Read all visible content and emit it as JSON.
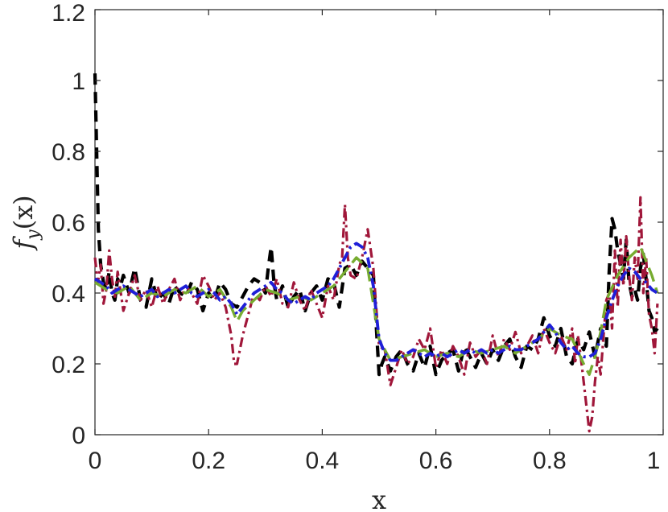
{
  "chart_data": {
    "type": "line",
    "title": "",
    "xlabel": "x",
    "ylabel_parts": {
      "f": "f",
      "sub": "y",
      "args": "(x)"
    },
    "xlim": [
      0,
      1
    ],
    "ylim": [
      0,
      1.2
    ],
    "xticks": [
      0,
      0.2,
      0.4,
      0.6,
      0.8,
      1
    ],
    "xtick_labels": [
      "0",
      "0.2",
      "0.4",
      "0.6",
      "0.8",
      "1"
    ],
    "yticks": [
      0,
      0.2,
      0.4,
      0.6,
      0.8,
      1,
      1.2
    ],
    "ytick_labels": [
      "0",
      "0.2",
      "0.4",
      "0.6",
      "0.8",
      "1",
      "1.2"
    ],
    "grid": false,
    "legend": "none",
    "series": [
      {
        "color": "#000000",
        "style": "dashed-thick",
        "x": [
          0.0,
          0.003,
          0.006,
          0.01,
          0.015,
          0.02,
          0.025,
          0.03,
          0.035,
          0.04,
          0.045,
          0.05,
          0.06,
          0.07,
          0.08,
          0.09,
          0.1,
          0.11,
          0.12,
          0.13,
          0.14,
          0.15,
          0.16,
          0.17,
          0.18,
          0.19,
          0.2,
          0.21,
          0.22,
          0.23,
          0.24,
          0.25,
          0.26,
          0.27,
          0.28,
          0.29,
          0.3,
          0.305,
          0.31,
          0.315,
          0.32,
          0.33,
          0.34,
          0.35,
          0.36,
          0.37,
          0.38,
          0.39,
          0.4,
          0.41,
          0.42,
          0.43,
          0.44,
          0.45,
          0.46,
          0.47,
          0.48,
          0.49,
          0.5,
          0.505,
          0.51,
          0.52,
          0.53,
          0.54,
          0.55,
          0.56,
          0.57,
          0.58,
          0.59,
          0.6,
          0.61,
          0.62,
          0.63,
          0.64,
          0.65,
          0.66,
          0.67,
          0.68,
          0.69,
          0.7,
          0.71,
          0.72,
          0.73,
          0.74,
          0.75,
          0.76,
          0.77,
          0.78,
          0.79,
          0.8,
          0.81,
          0.82,
          0.83,
          0.84,
          0.85,
          0.86,
          0.87,
          0.88,
          0.89,
          0.9,
          0.905,
          0.91,
          0.915,
          0.92,
          0.925,
          0.93,
          0.935,
          0.94,
          0.945,
          0.95,
          0.955,
          0.96,
          0.965,
          0.97,
          0.975,
          0.98,
          0.985,
          0.99
        ],
        "y": [
          1.02,
          0.8,
          0.58,
          0.48,
          0.43,
          0.41,
          0.46,
          0.4,
          0.38,
          0.44,
          0.42,
          0.45,
          0.4,
          0.47,
          0.38,
          0.36,
          0.44,
          0.38,
          0.4,
          0.37,
          0.42,
          0.4,
          0.39,
          0.43,
          0.41,
          0.35,
          0.4,
          0.38,
          0.43,
          0.41,
          0.37,
          0.36,
          0.39,
          0.42,
          0.44,
          0.43,
          0.4,
          0.47,
          0.53,
          0.43,
          0.38,
          0.42,
          0.36,
          0.39,
          0.41,
          0.35,
          0.4,
          0.42,
          0.38,
          0.44,
          0.43,
          0.36,
          0.47,
          0.48,
          0.45,
          0.49,
          0.47,
          0.45,
          0.17,
          0.2,
          0.22,
          0.18,
          0.22,
          0.24,
          0.2,
          0.18,
          0.23,
          0.19,
          0.25,
          0.17,
          0.21,
          0.23,
          0.24,
          0.18,
          0.25,
          0.22,
          0.19,
          0.23,
          0.2,
          0.24,
          0.21,
          0.25,
          0.27,
          0.22,
          0.19,
          0.25,
          0.24,
          0.27,
          0.33,
          0.28,
          0.25,
          0.3,
          0.22,
          0.2,
          0.27,
          0.24,
          0.29,
          0.22,
          0.3,
          0.25,
          0.46,
          0.61,
          0.58,
          0.52,
          0.48,
          0.44,
          0.55,
          0.43,
          0.39,
          0.41,
          0.38,
          0.47,
          0.51,
          0.44,
          0.35,
          0.33,
          0.29,
          0.3
        ]
      },
      {
        "color": "#a0173a",
        "style": "dashdot",
        "x": [
          0.0,
          0.005,
          0.01,
          0.015,
          0.02,
          0.025,
          0.03,
          0.035,
          0.04,
          0.05,
          0.06,
          0.07,
          0.08,
          0.09,
          0.1,
          0.11,
          0.12,
          0.13,
          0.14,
          0.15,
          0.16,
          0.17,
          0.18,
          0.19,
          0.2,
          0.21,
          0.22,
          0.23,
          0.24,
          0.245,
          0.25,
          0.26,
          0.27,
          0.28,
          0.29,
          0.3,
          0.31,
          0.32,
          0.33,
          0.34,
          0.35,
          0.36,
          0.37,
          0.38,
          0.39,
          0.4,
          0.41,
          0.42,
          0.43,
          0.435,
          0.44,
          0.445,
          0.45,
          0.46,
          0.47,
          0.48,
          0.49,
          0.5,
          0.51,
          0.52,
          0.53,
          0.54,
          0.55,
          0.56,
          0.57,
          0.58,
          0.59,
          0.6,
          0.61,
          0.62,
          0.63,
          0.64,
          0.65,
          0.66,
          0.67,
          0.68,
          0.69,
          0.7,
          0.71,
          0.72,
          0.73,
          0.74,
          0.75,
          0.76,
          0.77,
          0.78,
          0.79,
          0.8,
          0.81,
          0.82,
          0.83,
          0.84,
          0.845,
          0.85,
          0.855,
          0.86,
          0.865,
          0.87,
          0.875,
          0.88,
          0.885,
          0.89,
          0.895,
          0.9,
          0.905,
          0.91,
          0.915,
          0.92,
          0.925,
          0.93,
          0.935,
          0.94,
          0.945,
          0.95,
          0.955,
          0.96,
          0.965,
          0.97,
          0.975,
          0.98,
          0.985,
          0.99
        ],
        "y": [
          0.5,
          0.43,
          0.48,
          0.37,
          0.41,
          0.52,
          0.44,
          0.39,
          0.46,
          0.35,
          0.4,
          0.45,
          0.38,
          0.41,
          0.36,
          0.42,
          0.37,
          0.41,
          0.44,
          0.38,
          0.42,
          0.4,
          0.37,
          0.45,
          0.42,
          0.38,
          0.4,
          0.36,
          0.28,
          0.2,
          0.2,
          0.28,
          0.34,
          0.4,
          0.38,
          0.42,
          0.39,
          0.44,
          0.37,
          0.36,
          0.43,
          0.38,
          0.35,
          0.41,
          0.37,
          0.33,
          0.42,
          0.38,
          0.48,
          0.5,
          0.65,
          0.5,
          0.45,
          0.44,
          0.5,
          0.58,
          0.47,
          0.25,
          0.24,
          0.14,
          0.19,
          0.24,
          0.2,
          0.22,
          0.27,
          0.24,
          0.3,
          0.19,
          0.24,
          0.2,
          0.25,
          0.22,
          0.17,
          0.26,
          0.22,
          0.24,
          0.2,
          0.28,
          0.22,
          0.27,
          0.24,
          0.29,
          0.23,
          0.25,
          0.28,
          0.23,
          0.3,
          0.26,
          0.23,
          0.28,
          0.24,
          0.3,
          0.2,
          0.28,
          0.22,
          0.15,
          0.08,
          0.01,
          0.05,
          0.15,
          0.22,
          0.17,
          0.28,
          0.38,
          0.4,
          0.3,
          0.52,
          0.36,
          0.55,
          0.42,
          0.56,
          0.45,
          0.38,
          0.5,
          0.44,
          0.67,
          0.4,
          0.5,
          0.34,
          0.3,
          0.23,
          0.37
        ]
      },
      {
        "color": "#77ac30",
        "style": "dashed-long",
        "x": [
          0.0,
          0.02,
          0.04,
          0.06,
          0.08,
          0.1,
          0.12,
          0.14,
          0.16,
          0.18,
          0.2,
          0.22,
          0.24,
          0.25,
          0.26,
          0.28,
          0.3,
          0.32,
          0.34,
          0.36,
          0.38,
          0.4,
          0.42,
          0.44,
          0.46,
          0.48,
          0.5,
          0.52,
          0.54,
          0.56,
          0.58,
          0.6,
          0.62,
          0.64,
          0.66,
          0.68,
          0.7,
          0.72,
          0.74,
          0.76,
          0.78,
          0.8,
          0.82,
          0.84,
          0.86,
          0.87,
          0.88,
          0.89,
          0.9,
          0.92,
          0.94,
          0.96,
          0.98,
          0.99
        ],
        "y": [
          0.43,
          0.41,
          0.4,
          0.42,
          0.38,
          0.4,
          0.39,
          0.41,
          0.4,
          0.42,
          0.39,
          0.41,
          0.36,
          0.32,
          0.35,
          0.38,
          0.41,
          0.4,
          0.38,
          0.39,
          0.38,
          0.4,
          0.42,
          0.46,
          0.5,
          0.47,
          0.27,
          0.21,
          0.22,
          0.23,
          0.24,
          0.22,
          0.23,
          0.22,
          0.24,
          0.23,
          0.24,
          0.25,
          0.23,
          0.25,
          0.27,
          0.3,
          0.28,
          0.27,
          0.2,
          0.17,
          0.22,
          0.29,
          0.38,
          0.45,
          0.5,
          0.53,
          0.45,
          0.4
        ]
      },
      {
        "color": "#1f1fd8",
        "style": "dashdot-thick",
        "x": [
          0.0,
          0.01,
          0.02,
          0.03,
          0.04,
          0.05,
          0.06,
          0.07,
          0.08,
          0.09,
          0.1,
          0.11,
          0.12,
          0.13,
          0.14,
          0.15,
          0.16,
          0.17,
          0.18,
          0.19,
          0.2,
          0.21,
          0.22,
          0.23,
          0.24,
          0.25,
          0.26,
          0.27,
          0.28,
          0.29,
          0.3,
          0.31,
          0.32,
          0.33,
          0.34,
          0.35,
          0.36,
          0.37,
          0.38,
          0.39,
          0.4,
          0.41,
          0.42,
          0.43,
          0.44,
          0.45,
          0.46,
          0.47,
          0.48,
          0.49,
          0.5,
          0.51,
          0.52,
          0.53,
          0.54,
          0.55,
          0.56,
          0.57,
          0.58,
          0.59,
          0.6,
          0.61,
          0.62,
          0.63,
          0.64,
          0.65,
          0.66,
          0.67,
          0.68,
          0.69,
          0.7,
          0.71,
          0.72,
          0.73,
          0.74,
          0.75,
          0.76,
          0.77,
          0.78,
          0.79,
          0.8,
          0.81,
          0.82,
          0.83,
          0.84,
          0.85,
          0.86,
          0.87,
          0.88,
          0.89,
          0.9,
          0.91,
          0.92,
          0.93,
          0.94,
          0.95,
          0.96,
          0.97,
          0.98,
          0.99
        ],
        "y": [
          0.44,
          0.43,
          0.42,
          0.4,
          0.41,
          0.42,
          0.41,
          0.4,
          0.39,
          0.4,
          0.41,
          0.39,
          0.4,
          0.41,
          0.4,
          0.41,
          0.42,
          0.4,
          0.39,
          0.4,
          0.41,
          0.4,
          0.38,
          0.39,
          0.37,
          0.34,
          0.36,
          0.38,
          0.4,
          0.41,
          0.42,
          0.43,
          0.41,
          0.4,
          0.38,
          0.37,
          0.38,
          0.39,
          0.38,
          0.4,
          0.41,
          0.42,
          0.44,
          0.47,
          0.5,
          0.53,
          0.54,
          0.53,
          0.5,
          0.42,
          0.27,
          0.23,
          0.21,
          0.21,
          0.22,
          0.23,
          0.24,
          0.23,
          0.22,
          0.23,
          0.22,
          0.23,
          0.22,
          0.23,
          0.24,
          0.23,
          0.24,
          0.23,
          0.24,
          0.23,
          0.24,
          0.23,
          0.24,
          0.25,
          0.24,
          0.24,
          0.25,
          0.26,
          0.27,
          0.29,
          0.31,
          0.29,
          0.26,
          0.24,
          0.25,
          0.23,
          0.22,
          0.22,
          0.23,
          0.27,
          0.33,
          0.38,
          0.42,
          0.45,
          0.47,
          0.46,
          0.44,
          0.43,
          0.41,
          0.4
        ]
      }
    ]
  }
}
